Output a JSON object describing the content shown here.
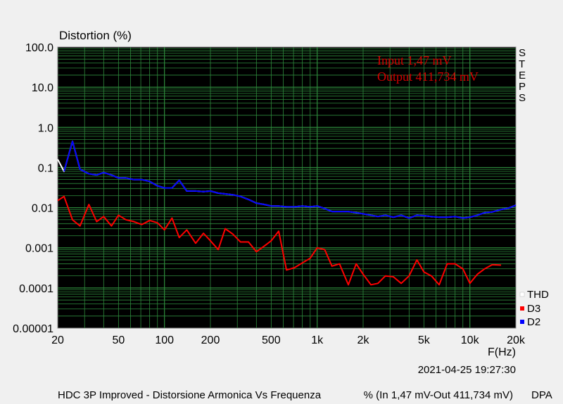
{
  "chart_data": {
    "type": "line",
    "title": "Distortion (%)",
    "xlabel": "F(Hz)",
    "x_scale": "log",
    "y_scale": "log",
    "xlim": [
      20,
      20000
    ],
    "ylim": [
      1e-05,
      100
    ],
    "y_tick_labels": [
      "100.0",
      "10.0",
      "1.0",
      "0.1",
      "0.01",
      "0.001",
      "0.0001",
      "0.00001"
    ],
    "x_tick_labels": [
      {
        "v": 20,
        "label": "20"
      },
      {
        "v": 50,
        "label": "50"
      },
      {
        "v": 100,
        "label": "100"
      },
      {
        "v": 200,
        "label": "200"
      },
      {
        "v": 500,
        "label": "500"
      },
      {
        "v": 1000,
        "label": "1k"
      },
      {
        "v": 2000,
        "label": "2k"
      },
      {
        "v": 5000,
        "label": "5k"
      },
      {
        "v": 10000,
        "label": "10k"
      },
      {
        "v": 20000,
        "label": "20k"
      }
    ],
    "grid": true,
    "annotations": [
      "Input 1,47 mV",
      "Output 411,734 mV"
    ],
    "side_label": [
      "S",
      "T",
      "E",
      "P",
      "S"
    ],
    "legend_position": "bottom-right",
    "timestamp": "2021-04-25 19:27:30",
    "caption": "HDC 3P Improved - Distorsione Armonica Vs Frequenza",
    "caption_units": "% (In 1,47 mV-Out 411,734 mV)",
    "brand": "DPA",
    "series": [
      {
        "name": "THD",
        "color": "#ffffff",
        "points": [
          [
            20,
            0.16
          ],
          [
            22,
            0.08
          ],
          [
            25,
            0.45
          ],
          [
            28,
            0.09
          ],
          [
            32,
            0.07
          ],
          [
            36,
            0.065
          ],
          [
            40,
            0.075
          ],
          [
            45,
            0.065
          ],
          [
            50,
            0.055
          ],
          [
            56,
            0.055
          ],
          [
            63,
            0.05
          ],
          [
            71,
            0.05
          ],
          [
            80,
            0.045
          ],
          [
            90,
            0.035
          ],
          [
            100,
            0.031
          ],
          [
            112,
            0.031
          ],
          [
            125,
            0.048
          ],
          [
            140,
            0.026
          ],
          [
            160,
            0.026
          ],
          [
            180,
            0.025
          ],
          [
            200,
            0.026
          ],
          [
            225,
            0.023
          ],
          [
            250,
            0.022
          ],
          [
            280,
            0.021
          ],
          [
            315,
            0.019
          ],
          [
            355,
            0.016
          ],
          [
            400,
            0.013
          ],
          [
            450,
            0.012
          ],
          [
            500,
            0.011
          ],
          [
            560,
            0.011
          ],
          [
            630,
            0.0105
          ],
          [
            710,
            0.0105
          ],
          [
            800,
            0.011
          ],
          [
            900,
            0.0105
          ],
          [
            1000,
            0.011
          ],
          [
            1120,
            0.0095
          ],
          [
            1250,
            0.008
          ],
          [
            1400,
            0.008
          ],
          [
            1600,
            0.008
          ],
          [
            1800,
            0.0075
          ],
          [
            2000,
            0.007
          ],
          [
            2250,
            0.0065
          ],
          [
            2500,
            0.006
          ],
          [
            2800,
            0.0065
          ],
          [
            3150,
            0.0058
          ],
          [
            3550,
            0.0065
          ],
          [
            4000,
            0.0055
          ],
          [
            4500,
            0.0065
          ],
          [
            5000,
            0.0063
          ],
          [
            5600,
            0.006
          ],
          [
            6300,
            0.0058
          ],
          [
            7100,
            0.0058
          ],
          [
            8000,
            0.006
          ],
          [
            9000,
            0.0055
          ],
          [
            10000,
            0.0058
          ],
          [
            11200,
            0.0065
          ],
          [
            12500,
            0.0075
          ],
          [
            14000,
            0.0078
          ],
          [
            16000,
            0.009
          ],
          [
            18000,
            0.0098
          ],
          [
            20000,
            0.0115
          ]
        ]
      },
      {
        "name": "D3",
        "color": "#ff0000",
        "points": [
          [
            20,
            0.015
          ],
          [
            22,
            0.019
          ],
          [
            25,
            0.005
          ],
          [
            28,
            0.0035
          ],
          [
            32,
            0.012
          ],
          [
            36,
            0.0045
          ],
          [
            40,
            0.006
          ],
          [
            45,
            0.0035
          ],
          [
            50,
            0.0065
          ],
          [
            56,
            0.005
          ],
          [
            63,
            0.0045
          ],
          [
            71,
            0.0038
          ],
          [
            80,
            0.0048
          ],
          [
            90,
            0.0042
          ],
          [
            100,
            0.0028
          ],
          [
            112,
            0.0055
          ],
          [
            125,
            0.0018
          ],
          [
            140,
            0.0028
          ],
          [
            160,
            0.0013
          ],
          [
            180,
            0.0023
          ],
          [
            200,
            0.0015
          ],
          [
            225,
            0.0009
          ],
          [
            250,
            0.003
          ],
          [
            280,
            0.0022
          ],
          [
            315,
            0.0014
          ],
          [
            355,
            0.0014
          ],
          [
            400,
            0.0008
          ],
          [
            450,
            0.0011
          ],
          [
            500,
            0.0015
          ],
          [
            560,
            0.0026
          ],
          [
            630,
            0.00028
          ],
          [
            710,
            0.00032
          ],
          [
            800,
            0.00042
          ],
          [
            900,
            0.00055
          ],
          [
            1000,
            0.001
          ],
          [
            1120,
            0.0009
          ],
          [
            1250,
            0.00035
          ],
          [
            1400,
            0.0004
          ],
          [
            1600,
            0.00012
          ],
          [
            1800,
            0.0004
          ],
          [
            2000,
            0.00022
          ],
          [
            2250,
            0.00012
          ],
          [
            2500,
            0.00013
          ],
          [
            2800,
            0.0002
          ],
          [
            3150,
            0.00019
          ],
          [
            3550,
            0.00013
          ],
          [
            4000,
            0.0002
          ],
          [
            4500,
            0.0005
          ],
          [
            5000,
            0.00025
          ],
          [
            5600,
            0.0002
          ],
          [
            6300,
            0.00012
          ],
          [
            7100,
            0.0004
          ],
          [
            8000,
            0.0004
          ],
          [
            9000,
            0.0003
          ],
          [
            10000,
            0.00013
          ],
          [
            11200,
            0.00022
          ],
          [
            12500,
            0.0003
          ],
          [
            14000,
            0.00038
          ],
          [
            16000,
            0.00037
          ]
        ]
      },
      {
        "name": "D2",
        "color": "#0000ff",
        "points": [
          [
            22,
            0.08
          ],
          [
            25,
            0.45
          ],
          [
            28,
            0.09
          ],
          [
            32,
            0.07
          ],
          [
            36,
            0.065
          ],
          [
            40,
            0.075
          ],
          [
            45,
            0.065
          ],
          [
            50,
            0.055
          ],
          [
            56,
            0.055
          ],
          [
            63,
            0.05
          ],
          [
            71,
            0.05
          ],
          [
            80,
            0.045
          ],
          [
            90,
            0.035
          ],
          [
            100,
            0.031
          ],
          [
            112,
            0.031
          ],
          [
            125,
            0.048
          ],
          [
            140,
            0.026
          ],
          [
            160,
            0.026
          ],
          [
            180,
            0.025
          ],
          [
            200,
            0.026
          ],
          [
            225,
            0.023
          ],
          [
            250,
            0.022
          ],
          [
            280,
            0.021
          ],
          [
            315,
            0.019
          ],
          [
            355,
            0.016
          ],
          [
            400,
            0.013
          ],
          [
            450,
            0.012
          ],
          [
            500,
            0.011
          ],
          [
            560,
            0.011
          ],
          [
            630,
            0.0105
          ],
          [
            710,
            0.0105
          ],
          [
            800,
            0.011
          ],
          [
            900,
            0.0105
          ],
          [
            1000,
            0.011
          ],
          [
            1120,
            0.0095
          ],
          [
            1250,
            0.008
          ],
          [
            1400,
            0.008
          ],
          [
            1600,
            0.008
          ],
          [
            1800,
            0.0075
          ],
          [
            2000,
            0.007
          ],
          [
            2250,
            0.0065
          ],
          [
            2500,
            0.006
          ],
          [
            2800,
            0.0065
          ],
          [
            3150,
            0.0058
          ],
          [
            3550,
            0.0065
          ],
          [
            4000,
            0.0055
          ],
          [
            4500,
            0.0065
          ],
          [
            5000,
            0.0063
          ],
          [
            5600,
            0.006
          ],
          [
            6300,
            0.0058
          ],
          [
            7100,
            0.0058
          ],
          [
            8000,
            0.006
          ],
          [
            9000,
            0.0055
          ],
          [
            10000,
            0.0058
          ],
          [
            11200,
            0.0065
          ],
          [
            12500,
            0.0075
          ],
          [
            14000,
            0.0078
          ],
          [
            16000,
            0.009
          ],
          [
            18000,
            0.0098
          ],
          [
            20000,
            0.0115
          ]
        ]
      }
    ]
  },
  "colors": {
    "plot_bg": "#000000",
    "grid": "#2e8a3c",
    "page_bg": "#f0f0f0",
    "note": "#d40000"
  }
}
